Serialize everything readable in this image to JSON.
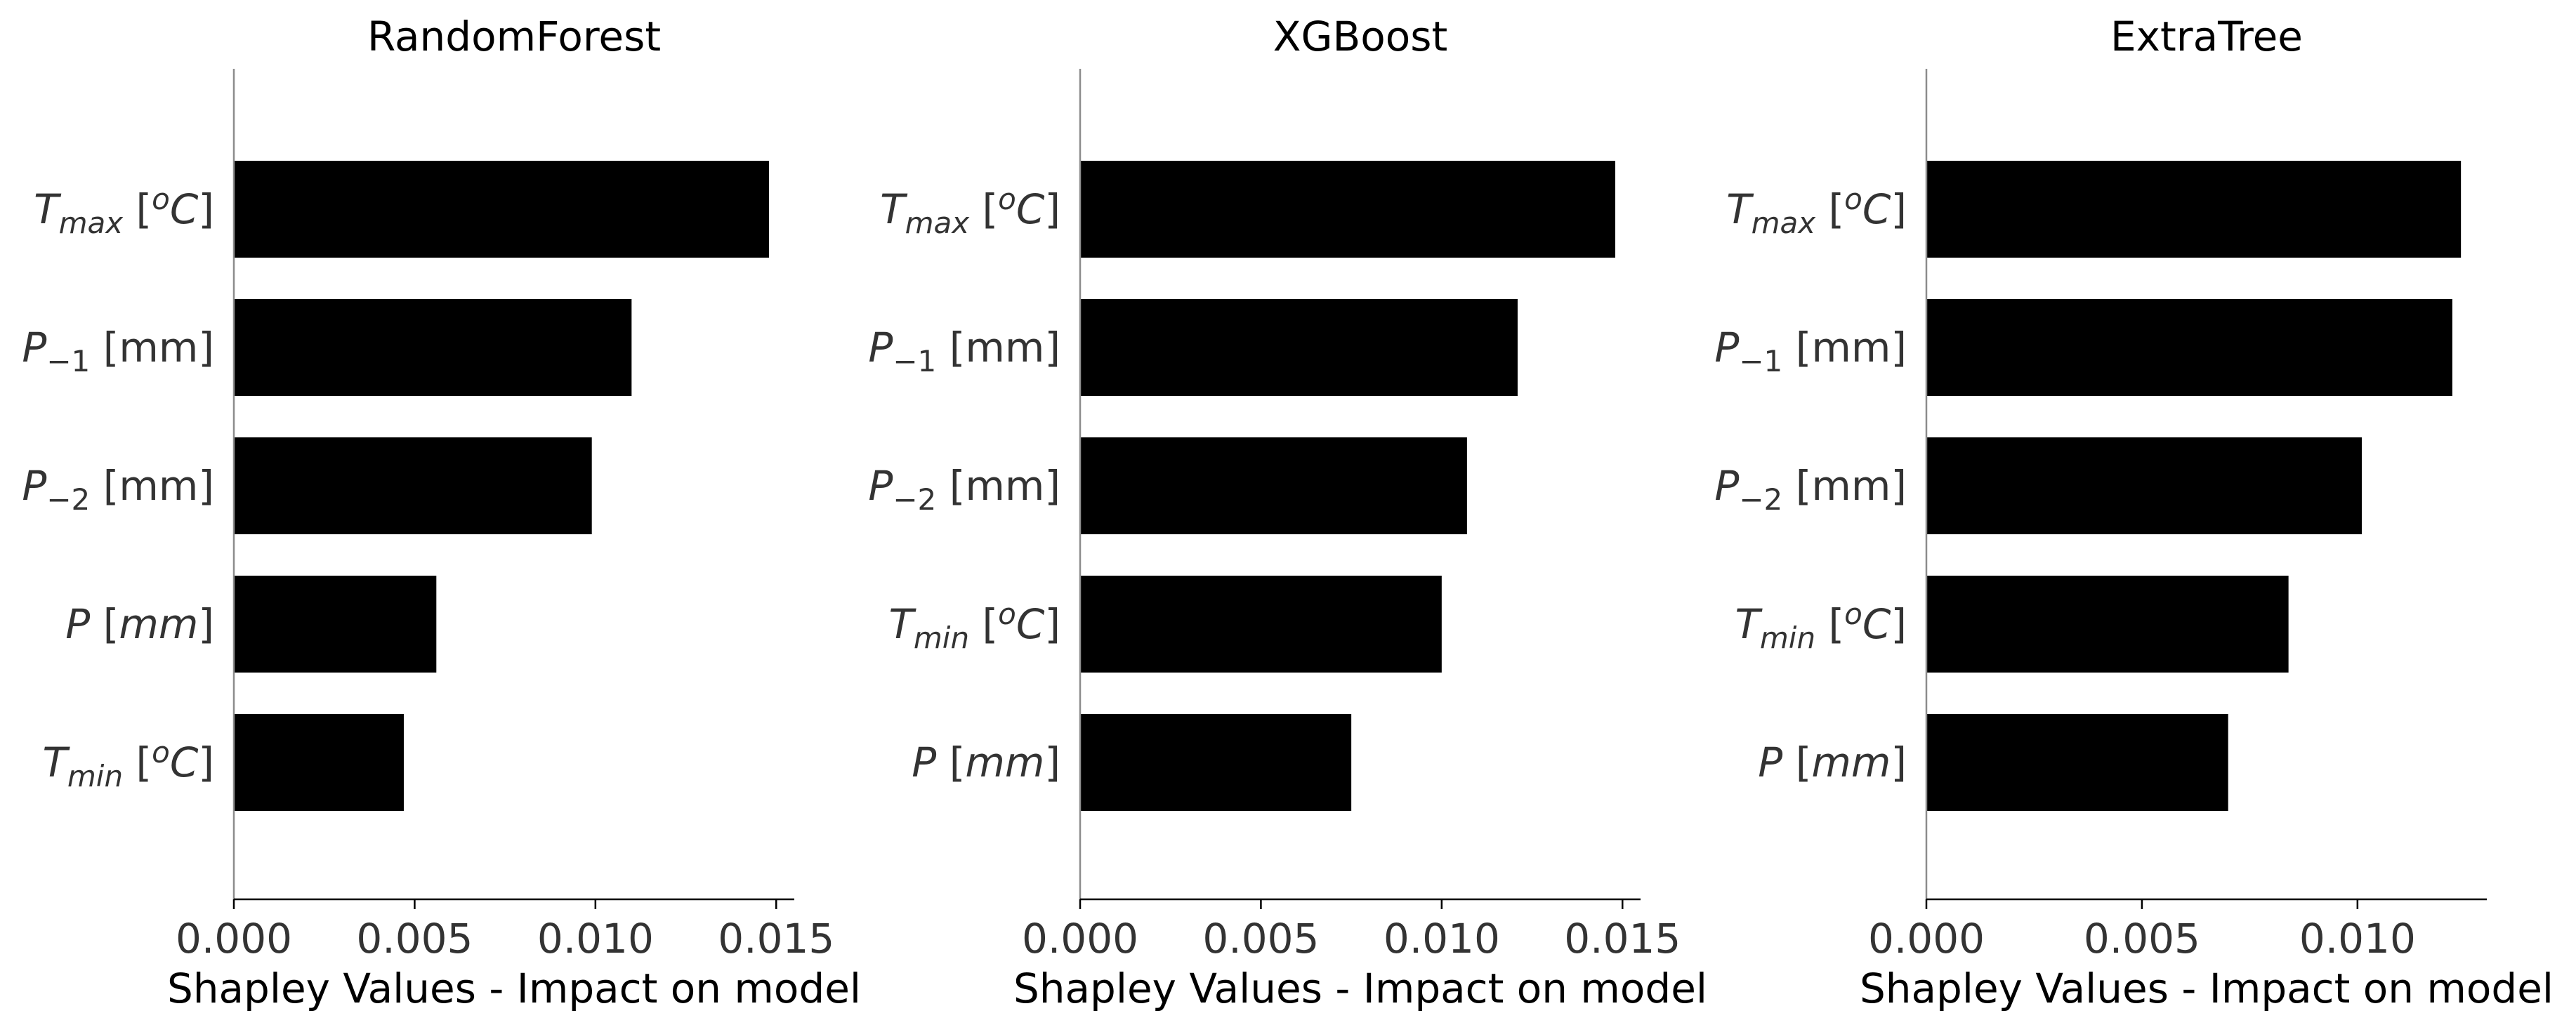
{
  "chart_data": [
    {
      "type": "bar",
      "orientation": "horizontal",
      "title": "RandomForest",
      "xlabel": "Shapley Values - Impact on model",
      "ylabel": "",
      "xlim": [
        0,
        0.0155
      ],
      "xticks": [
        "0.000",
        "0.005",
        "0.010",
        "0.015"
      ],
      "grid": false,
      "bar_color": "#000000",
      "categories": [
        "T_max [°C]",
        "P_-1 [mm]",
        "P_-2 [mm]",
        "P [mm]",
        "T_min [°C]"
      ],
      "values": [
        0.0148,
        0.011,
        0.0099,
        0.0056,
        0.0047
      ]
    },
    {
      "type": "bar",
      "orientation": "horizontal",
      "title": "XGBoost",
      "xlabel": "Shapley Values - Impact on model",
      "ylabel": "",
      "xlim": [
        0,
        0.0155
      ],
      "xticks": [
        "0.000",
        "0.005",
        "0.010",
        "0.015"
      ],
      "grid": false,
      "bar_color": "#000000",
      "categories": [
        "T_max [°C]",
        "P_-1 [mm]",
        "P_-2 [mm]",
        "T_min [°C]",
        "P [mm]"
      ],
      "values": [
        0.0148,
        0.0121,
        0.0107,
        0.01,
        0.0075
      ]
    },
    {
      "type": "bar",
      "orientation": "horizontal",
      "title": "ExtraTree",
      "xlabel": "Shapley Values - Impact on model",
      "ylabel": "",
      "xlim": [
        0,
        0.013
      ],
      "xticks": [
        "0.000",
        "0.005",
        "0.010"
      ],
      "grid": false,
      "bar_color": "#000000",
      "categories": [
        "T_max [°C]",
        "P_-1 [mm]",
        "P_-2 [mm]",
        "T_min [°C]",
        "P [mm]"
      ],
      "values": [
        0.0124,
        0.0122,
        0.0101,
        0.0084,
        0.007
      ]
    }
  ]
}
